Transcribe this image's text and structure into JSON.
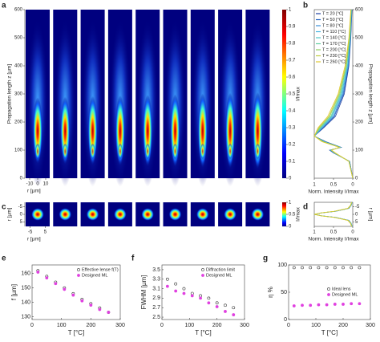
{
  "chart_data": [
    {
      "type": "heatmap",
      "panel_label": "a",
      "ylabel": "Propagation length z [µm]",
      "xlabel": "r [µm]",
      "ylim": [
        0,
        600
      ],
      "yticks": [
        0,
        100,
        200,
        300,
        400,
        500,
        600
      ],
      "xlim": [
        -15,
        15
      ],
      "xticks": [
        -10,
        0,
        10
      ],
      "colorbar_label": "I/Imax",
      "clim": [
        0,
        1
      ],
      "cticks": [
        0,
        0.1,
        0.2,
        0.3,
        0.4,
        0.5,
        0.6,
        0.7,
        0.8,
        0.9,
        1
      ]
    },
    {
      "type": "line",
      "panel_label": "b",
      "xlabel": "Propagation length z [µm]",
      "ylabel": "Norm. Intensity I/Imax",
      "xlim": [
        0,
        600
      ],
      "xticks": [
        0,
        100,
        200,
        300,
        400,
        500,
        600
      ],
      "ylim": [
        1,
        0
      ],
      "yticks": [
        1,
        0.5,
        0
      ],
      "legend": "upper left",
      "x": [
        0,
        60,
        90,
        100,
        110,
        130,
        150,
        180,
        220,
        300,
        400,
        500,
        600
      ],
      "series": [
        {
          "name": "T = 20 [°C]",
          "color": "#1f3f9f",
          "values": [
            0,
            0.08,
            0.5,
            0.6,
            0.3,
            0.7,
            1,
            0.75,
            0.45,
            0.22,
            0.1,
            0.05,
            0.02
          ]
        },
        {
          "name": "T = 50 [°C]",
          "color": "#2060c0",
          "values": [
            0,
            0.08,
            0.49,
            0.59,
            0.31,
            0.72,
            1,
            0.77,
            0.48,
            0.24,
            0.11,
            0.055,
            0.025
          ]
        },
        {
          "name": "T = 80 [°C]",
          "color": "#3a8fd8",
          "values": [
            0,
            0.09,
            0.48,
            0.58,
            0.32,
            0.73,
            1,
            0.79,
            0.5,
            0.26,
            0.12,
            0.06,
            0.03
          ]
        },
        {
          "name": "T = 110 [°C]",
          "color": "#40b0e0",
          "values": [
            0,
            0.09,
            0.48,
            0.57,
            0.32,
            0.74,
            1,
            0.8,
            0.53,
            0.28,
            0.13,
            0.065,
            0.032
          ]
        },
        {
          "name": "T = 140 [°C]",
          "color": "#50c8c8",
          "values": [
            0,
            0.09,
            0.47,
            0.57,
            0.33,
            0.75,
            1,
            0.82,
            0.55,
            0.3,
            0.14,
            0.07,
            0.035
          ]
        },
        {
          "name": "T = 170 [°C]",
          "color": "#60d0a0",
          "values": [
            0,
            0.1,
            0.47,
            0.56,
            0.33,
            0.76,
            1,
            0.84,
            0.57,
            0.32,
            0.16,
            0.075,
            0.038
          ]
        },
        {
          "name": "T = 200 [°C]",
          "color": "#90d060",
          "values": [
            0,
            0.1,
            0.46,
            0.56,
            0.34,
            0.77,
            1,
            0.86,
            0.6,
            0.34,
            0.17,
            0.08,
            0.04
          ]
        },
        {
          "name": "T = 230 [°C]",
          "color": "#c0d040",
          "values": [
            0,
            0.1,
            0.46,
            0.55,
            0.34,
            0.78,
            1,
            0.88,
            0.62,
            0.36,
            0.18,
            0.09,
            0.045
          ]
        },
        {
          "name": "T = 260 [°C]",
          "color": "#e0c830",
          "values": [
            0,
            0.1,
            0.45,
            0.55,
            0.35,
            0.8,
            1,
            0.9,
            0.65,
            0.38,
            0.2,
            0.1,
            0.05
          ]
        }
      ]
    },
    {
      "type": "heatmap",
      "panel_label": "c",
      "ylabel": "r [µm]",
      "xlabel": "r [µm]",
      "ylim": [
        8,
        -8
      ],
      "yticks": [
        -5,
        0,
        5
      ],
      "xlim": [
        -8,
        8
      ],
      "xticks": [
        -5,
        5
      ],
      "colorbar_label": "I/Imax",
      "clim": [
        0,
        1
      ],
      "cticks": [
        0,
        0.5,
        1
      ]
    },
    {
      "type": "line",
      "panel_label": "d",
      "xlabel": "r [µm]",
      "ylabel": "Norm. Intensity I/Imax",
      "xlim": [
        8,
        -8
      ],
      "xticks": [
        -5,
        0,
        5
      ],
      "ylim": [
        1,
        0
      ],
      "yticks": [
        1,
        0.5,
        0
      ],
      "x": [
        -8,
        -6,
        -4,
        -2,
        -1,
        0,
        1,
        2,
        4,
        6,
        8
      ],
      "series": [
        {
          "color": "#1f3f9f",
          "values": [
            0.02,
            0.04,
            0.1,
            0.45,
            0.8,
            1,
            0.8,
            0.45,
            0.1,
            0.04,
            0.02
          ]
        },
        {
          "color": "#2060c0",
          "values": [
            0.02,
            0.04,
            0.1,
            0.45,
            0.8,
            1,
            0.8,
            0.45,
            0.1,
            0.04,
            0.02
          ]
        },
        {
          "color": "#3a8fd8",
          "values": [
            0.02,
            0.04,
            0.11,
            0.46,
            0.8,
            1,
            0.8,
            0.46,
            0.11,
            0.04,
            0.02
          ]
        },
        {
          "color": "#40b0e0",
          "values": [
            0.02,
            0.04,
            0.11,
            0.46,
            0.81,
            1,
            0.81,
            0.46,
            0.11,
            0.04,
            0.02
          ]
        },
        {
          "color": "#50c8c8",
          "values": [
            0.02,
            0.05,
            0.11,
            0.47,
            0.81,
            1,
            0.81,
            0.47,
            0.11,
            0.05,
            0.02
          ]
        },
        {
          "color": "#60d0a0",
          "values": [
            0.02,
            0.05,
            0.12,
            0.47,
            0.81,
            1,
            0.81,
            0.47,
            0.12,
            0.05,
            0.02
          ]
        },
        {
          "color": "#90d060",
          "values": [
            0.03,
            0.05,
            0.12,
            0.48,
            0.82,
            1,
            0.82,
            0.48,
            0.12,
            0.05,
            0.03
          ]
        },
        {
          "color": "#c0d040",
          "values": [
            0.03,
            0.05,
            0.12,
            0.48,
            0.82,
            1,
            0.82,
            0.48,
            0.12,
            0.05,
            0.03
          ]
        },
        {
          "color": "#e0c830",
          "values": [
            0.03,
            0.06,
            0.13,
            0.49,
            0.82,
            1,
            0.82,
            0.49,
            0.13,
            0.06,
            0.03
          ]
        }
      ]
    },
    {
      "type": "scatter",
      "panel_label": "e",
      "xlabel": "T [°C]",
      "ylabel": "f [µm]",
      "xlim": [
        0,
        300
      ],
      "xticks": [
        0,
        100,
        200,
        300
      ],
      "ylim": [
        128,
        166
      ],
      "yticks": [
        130,
        140,
        150,
        160
      ],
      "legend": "upper right",
      "x": [
        20,
        50,
        80,
        110,
        140,
        170,
        200,
        230,
        260
      ],
      "series": [
        {
          "name": "Effective lense f(T)",
          "color": "#333333",
          "marker_fill": "none",
          "values": [
            162,
            158,
            154,
            150,
            146,
            142,
            139,
            136,
            133
          ]
        },
        {
          "name": "Designed ML",
          "color": "#e040e0",
          "marker_fill": "#e040e0",
          "values": [
            161,
            157,
            153,
            149,
            145,
            141,
            138,
            135,
            133
          ]
        }
      ]
    },
    {
      "type": "scatter",
      "panel_label": "f",
      "xlabel": "T [°C]",
      "ylabel": "FWHM [µm]",
      "xlim": [
        0,
        300
      ],
      "xticks": [
        0,
        100,
        200,
        300
      ],
      "ylim": [
        2.45,
        3.6
      ],
      "yticks": [
        2.5,
        2.7,
        2.9,
        3.1,
        3.3,
        3.5
      ],
      "legend": "upper right",
      "x": [
        20,
        50,
        80,
        110,
        140,
        170,
        200,
        230,
        260
      ],
      "series": [
        {
          "name": "Diffraction limit",
          "color": "#333333",
          "marker_fill": "none",
          "values": [
            3.3,
            3.2,
            3.1,
            3.0,
            2.95,
            2.9,
            2.8,
            2.75,
            2.7
          ]
        },
        {
          "name": "Designed ML",
          "color": "#e040e0",
          "marker_fill": "#e040e0",
          "values": [
            3.15,
            3.05,
            3.0,
            2.95,
            2.9,
            2.8,
            2.72,
            2.62,
            2.55
          ]
        }
      ]
    },
    {
      "type": "scatter",
      "panel_label": "g",
      "xlabel": "T [°C]",
      "ylabel": "η %",
      "xlim": [
        0,
        300
      ],
      "xticks": [
        0,
        100,
        200,
        300
      ],
      "ylim": [
        0,
        100
      ],
      "yticks": [
        0,
        50,
        100
      ],
      "legend": "center right",
      "x": [
        20,
        50,
        80,
        110,
        140,
        170,
        200,
        230,
        260
      ],
      "series": [
        {
          "name": "Ideal lens",
          "color": "#333333",
          "marker_fill": "none",
          "values": [
            95,
            95,
            95,
            95,
            95,
            95,
            95,
            95,
            95
          ]
        },
        {
          "name": "Designed ML",
          "color": "#e040e0",
          "marker_fill": "#e040e0",
          "values": [
            25,
            26,
            26,
            27,
            27,
            28,
            28,
            29,
            29
          ]
        }
      ]
    }
  ]
}
